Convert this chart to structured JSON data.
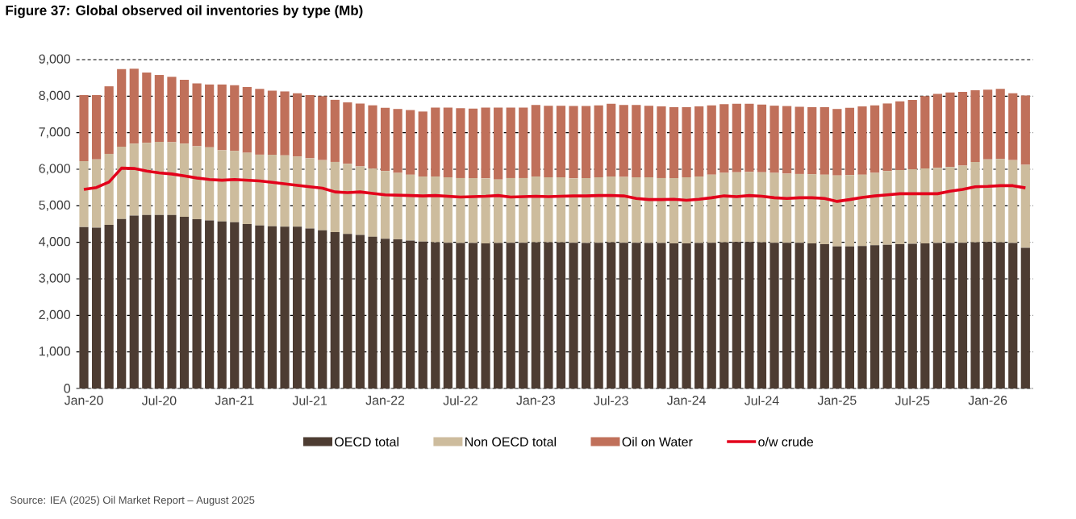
{
  "chart_data": {
    "type": "bar",
    "stacked": true,
    "title": "Figure 37: Global observed oil inventories by type (Mb)",
    "annotations": [
      "Source: IEA (2025) Oil Market Report – August 2025"
    ],
    "categories": [
      "Jan-20",
      null,
      null,
      null,
      null,
      null,
      "Jul-20",
      null,
      null,
      null,
      null,
      null,
      "Jan-21",
      null,
      null,
      null,
      null,
      null,
      "Jul-21",
      null,
      null,
      null,
      null,
      null,
      "Jan-22",
      null,
      null,
      null,
      null,
      null,
      "Jul-22",
      null,
      null,
      null,
      null,
      null,
      "Jan-23",
      null,
      null,
      null,
      null,
      null,
      "Jul-23",
      null,
      null,
      null,
      null,
      null,
      "Jan-24",
      null,
      null,
      null,
      null,
      null,
      "Jul-24",
      null,
      null,
      null,
      null,
      null,
      "Jan-25",
      null,
      null,
      null,
      null,
      null,
      "Jul-25",
      null,
      null,
      null,
      null,
      null,
      "Jan-26",
      null,
      null,
      null
    ],
    "series": [
      {
        "name": "OECD total",
        "type": "bar",
        "color": "#4d3c32",
        "values": [
          4420,
          4400,
          4480,
          4640,
          4730,
          4750,
          4750,
          4750,
          4700,
          4630,
          4600,
          4570,
          4550,
          4500,
          4460,
          4440,
          4430,
          4430,
          4380,
          4330,
          4280,
          4230,
          4200,
          4150,
          4100,
          4080,
          4050,
          4020,
          4000,
          3990,
          3980,
          3980,
          3970,
          3980,
          3990,
          3990,
          4000,
          4000,
          4000,
          3990,
          3980,
          3990,
          4000,
          3990,
          3990,
          3980,
          3980,
          3970,
          3970,
          3980,
          3990,
          4000,
          4010,
          4010,
          4000,
          3990,
          3990,
          3990,
          3970,
          3950,
          3890,
          3890,
          3900,
          3920,
          3930,
          3950,
          3960,
          3970,
          3980,
          3980,
          3990,
          4000,
          4010,
          4000,
          3980,
          3850
        ]
      },
      {
        "name": "Non OECD total",
        "type": "bar",
        "color": "#cdbc9d",
        "values": [
          1800,
          1870,
          1940,
          1980,
          1970,
          1970,
          2000,
          1990,
          2000,
          2000,
          2000,
          1950,
          1950,
          1950,
          1940,
          1960,
          1950,
          1920,
          1920,
          1920,
          1920,
          1920,
          1880,
          1870,
          1850,
          1820,
          1800,
          1780,
          1800,
          1790,
          1780,
          1780,
          1780,
          1740,
          1770,
          1770,
          1800,
          1780,
          1780,
          1760,
          1780,
          1790,
          1800,
          1800,
          1790,
          1800,
          1780,
          1790,
          1810,
          1820,
          1860,
          1900,
          1910,
          1920,
          1920,
          1910,
          1890,
          1880,
          1890,
          1900,
          1940,
          1950,
          1950,
          1980,
          2020,
          2030,
          2040,
          2050,
          2060,
          2080,
          2110,
          2200,
          2260,
          2280,
          2270,
          2270
        ]
      },
      {
        "name": "Oil on Water",
        "type": "bar",
        "color": "#c0705a",
        "values": [
          1810,
          1760,
          1850,
          2120,
          2050,
          1930,
          1830,
          1790,
          1750,
          1720,
          1720,
          1800,
          1800,
          1800,
          1800,
          1750,
          1750,
          1730,
          1730,
          1750,
          1700,
          1680,
          1720,
          1730,
          1730,
          1750,
          1770,
          1780,
          1890,
          1910,
          1910,
          1900,
          1940,
          1970,
          1930,
          1930,
          1960,
          1960,
          1960,
          1980,
          1970,
          1970,
          1990,
          1970,
          1980,
          1960,
          1960,
          1940,
          1920,
          1920,
          1900,
          1880,
          1870,
          1860,
          1850,
          1840,
          1850,
          1840,
          1840,
          1850,
          1820,
          1840,
          1870,
          1850,
          1850,
          1880,
          1900,
          1980,
          2020,
          2040,
          2020,
          1960,
          1910,
          1920,
          1830,
          1900
        ]
      },
      {
        "name": "o/w crude",
        "type": "line",
        "color": "#e3001b",
        "values": [
          5450,
          5500,
          5650,
          6030,
          6020,
          5950,
          5900,
          5870,
          5820,
          5760,
          5720,
          5700,
          5720,
          5700,
          5680,
          5640,
          5600,
          5560,
          5520,
          5480,
          5380,
          5360,
          5380,
          5340,
          5300,
          5290,
          5280,
          5270,
          5280,
          5260,
          5240,
          5250,
          5260,
          5280,
          5240,
          5250,
          5260,
          5250,
          5260,
          5270,
          5270,
          5280,
          5280,
          5270,
          5200,
          5170,
          5170,
          5180,
          5150,
          5180,
          5220,
          5270,
          5250,
          5280,
          5260,
          5220,
          5200,
          5220,
          5220,
          5200,
          5120,
          5170,
          5230,
          5270,
          5300,
          5330,
          5330,
          5330,
          5330,
          5400,
          5450,
          5520,
          5530,
          5550,
          5550,
          5490
        ]
      }
    ],
    "ylim": [
      0,
      9000
    ],
    "yticks": [
      0,
      {
        "value": 1000,
        "label": "1,000"
      },
      {
        "value": 2000,
        "label": "2,000"
      },
      {
        "value": 3000,
        "label": "3,000"
      },
      {
        "value": 4000,
        "label": "4,000"
      },
      {
        "value": 5000,
        "label": "5,000"
      },
      {
        "value": 6000,
        "label": "6,000"
      },
      {
        "value": 7000,
        "label": "7,000"
      },
      {
        "value": 8000,
        "label": "8,000"
      },
      {
        "value": 9000,
        "label": "9,000"
      }
    ],
    "grid": "y",
    "legend": "bottom"
  }
}
